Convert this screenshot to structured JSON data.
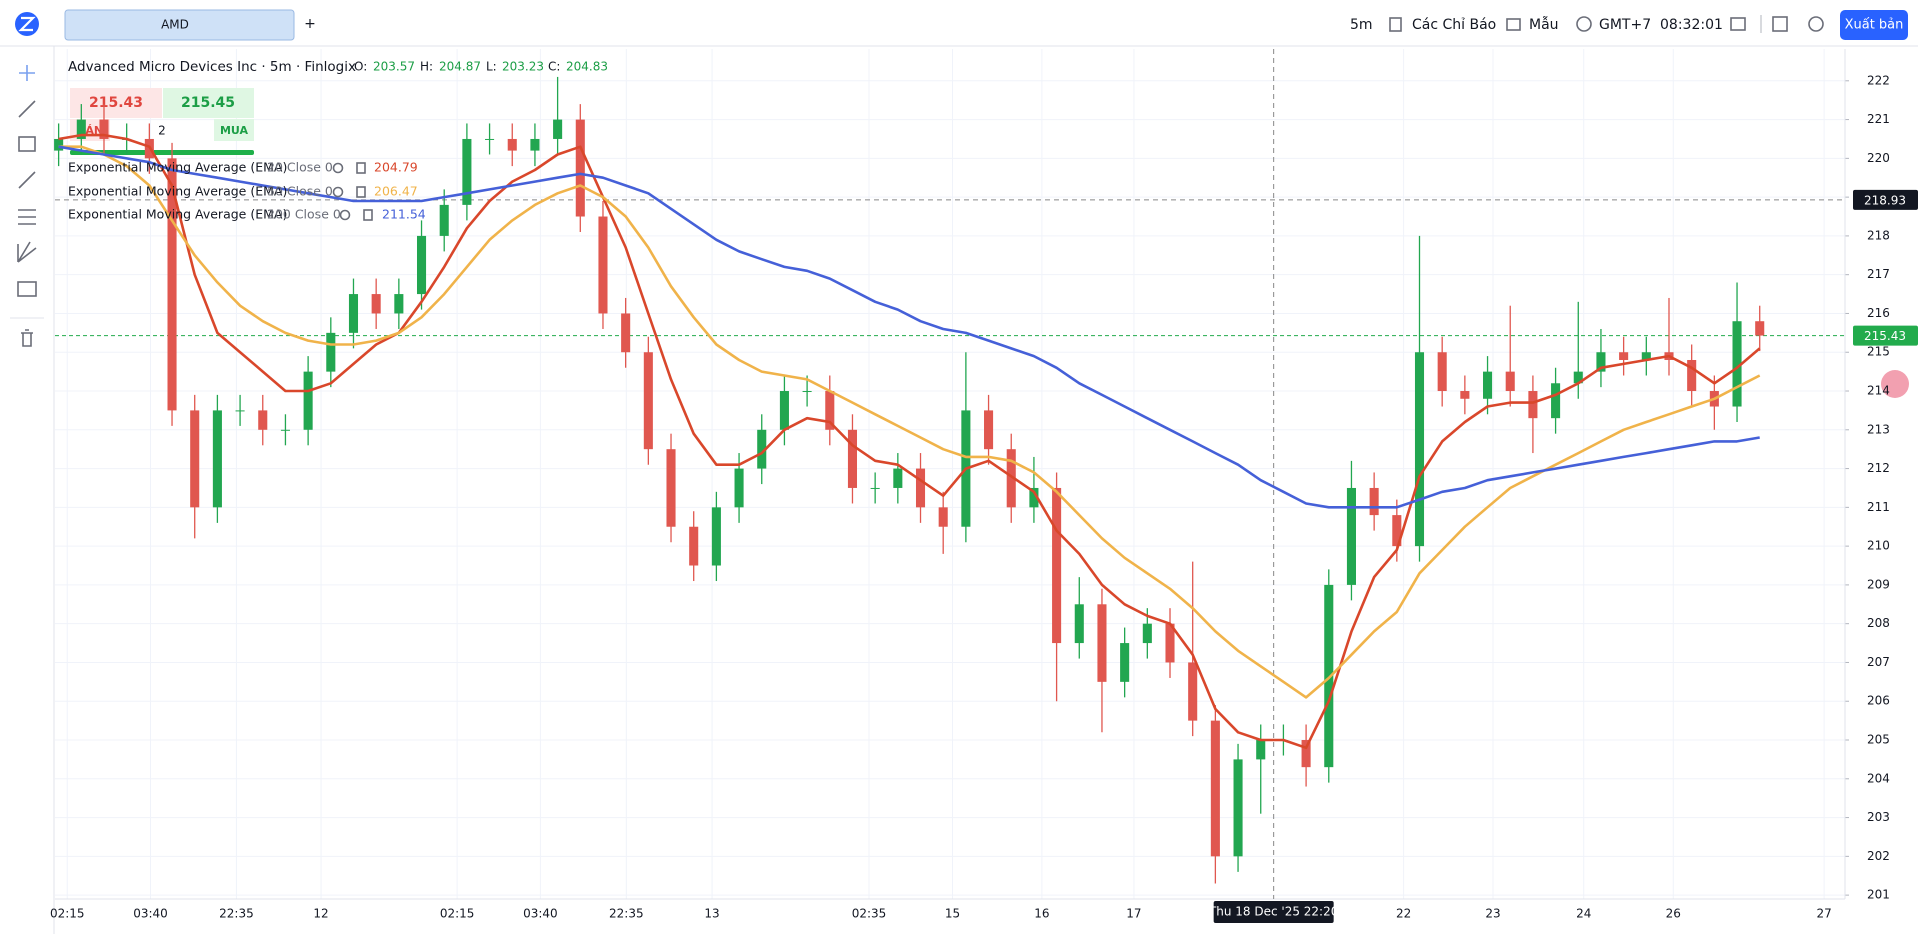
{
  "toolbar": {
    "tab": "AMD",
    "add": "+",
    "interval": "5m",
    "indicators": "Các Chỉ Báo",
    "templates": "Mẫu",
    "timezone": "GMT+7",
    "clock": "08:32:01",
    "publish": "Xuất bản"
  },
  "trade": {
    "sell_price": 215.43,
    "buy_price": 215.45,
    "sell": "BÁN",
    "quantity": 2,
    "buy": "MUA"
  },
  "chart_data": {
    "type": "candlestick",
    "title": "Advanced Micro Devices Inc · 5m · Finlogix",
    "ohlc_legend": [
      {
        "label": "O:",
        "value": 203.57
      },
      {
        "label": "H:",
        "value": 204.87
      },
      {
        "label": "L:",
        "value": 203.23
      },
      {
        "label": "C:",
        "value": 204.83
      }
    ],
    "up_color": "#22a650",
    "down_color": "#e0574f",
    "xlim": [
      -0.16,
      78.76
    ],
    "xticks": [
      {
        "value": 0.38,
        "label": "02:15"
      },
      {
        "value": 4.05,
        "label": "03:40"
      },
      {
        "value": 7.84,
        "label": "22:35"
      },
      {
        "value": 11.57,
        "label": "12"
      },
      {
        "value": 17.57,
        "label": "02:15"
      },
      {
        "value": 21.24,
        "label": "03:40"
      },
      {
        "value": 25.03,
        "label": "22:35"
      },
      {
        "value": 28.81,
        "label": "13"
      },
      {
        "value": 35.73,
        "label": "02:35"
      },
      {
        "value": 39.41,
        "label": "15"
      },
      {
        "value": 43.35,
        "label": "16"
      },
      {
        "value": 47.41,
        "label": "17"
      },
      {
        "value": 59.3,
        "label": "22"
      },
      {
        "value": 63.24,
        "label": "23"
      },
      {
        "value": 67.24,
        "label": "24"
      },
      {
        "value": 71.19,
        "label": "26"
      },
      {
        "value": 77.84,
        "label": "27"
      }
    ],
    "ylim": [
      200.9,
      222.82
    ],
    "yticks": [
      201,
      202,
      203,
      204,
      205,
      206,
      207,
      208,
      209,
      210,
      211,
      212,
      213,
      214,
      215,
      216,
      217,
      218,
      219,
      220,
      221,
      222
    ],
    "grid": true,
    "x": [
      0,
      1,
      2,
      3,
      4,
      5,
      6,
      7,
      8,
      9,
      10,
      11,
      12,
      13,
      14,
      15,
      16,
      17,
      18,
      19,
      20,
      21,
      22,
      23,
      24,
      25,
      26,
      27,
      28,
      29,
      30,
      31,
      32,
      33,
      34,
      35,
      36,
      37,
      38,
      39,
      40,
      41,
      42,
      43,
      44,
      45,
      46,
      47,
      48,
      49,
      50,
      51,
      52,
      53,
      54,
      55,
      56,
      57,
      58,
      59,
      60,
      61,
      62,
      63,
      64,
      65,
      66,
      67,
      68,
      69,
      70,
      71,
      72,
      73,
      74,
      75
    ],
    "candles": {
      "open": [
        220.2,
        220.5,
        221,
        220.5,
        220.5,
        220,
        213.5,
        211,
        213.5,
        213.5,
        213,
        213,
        214.5,
        215.5,
        216.5,
        216,
        216.5,
        218,
        218.8,
        220.5,
        220.5,
        220.2,
        220.5,
        221,
        218.5,
        216,
        215,
        212.5,
        210.5,
        209.5,
        211,
        212,
        213,
        214,
        214,
        213,
        211.5,
        211.5,
        212,
        211,
        210.5,
        213.5,
        212.5,
        211,
        211.5,
        207.5,
        208.5,
        206.5,
        207.5,
        208,
        207,
        205.5,
        202,
        204.5,
        205,
        205,
        204.3,
        209,
        211.5,
        210.8,
        210,
        215,
        214,
        213.8,
        214.5,
        214,
        213.3,
        214.2,
        214.5,
        215,
        214.8,
        215,
        214.8,
        214,
        213.6,
        215.8
      ],
      "high": [
        220.9,
        221.4,
        221.4,
        220.9,
        220.9,
        220.4,
        213.9,
        213.9,
        213.9,
        213.9,
        213.4,
        214.9,
        215.9,
        216.9,
        216.9,
        216.9,
        218.4,
        219.2,
        220.9,
        220.9,
        220.9,
        220.9,
        222.1,
        221.4,
        218.9,
        216.4,
        215.4,
        212.9,
        210.9,
        211.4,
        212.4,
        213.4,
        214.4,
        214.4,
        214.4,
        213.4,
        211.9,
        212.4,
        212.4,
        211.4,
        215,
        213.9,
        212.9,
        212.3,
        211.9,
        209.2,
        208.9,
        207.9,
        208.4,
        208.4,
        209.6,
        205.9,
        204.9,
        205.4,
        205.4,
        205.4,
        209.4,
        212.2,
        211.9,
        211.2,
        218,
        215.4,
        214.4,
        214.9,
        216.2,
        214.4,
        214.6,
        216.3,
        215.6,
        215.4,
        215.4,
        216.4,
        215.2,
        214.4,
        216.8,
        216.2
      ],
      "low": [
        219.8,
        220.1,
        220.1,
        220.1,
        219.6,
        213.1,
        210.2,
        210.6,
        213.1,
        212.6,
        212.6,
        212.6,
        214.1,
        215.1,
        215.6,
        215.6,
        216.1,
        217.6,
        218.4,
        220.1,
        219.8,
        219.8,
        220.1,
        218.1,
        215.6,
        214.6,
        212.1,
        210.1,
        209.1,
        209.1,
        210.6,
        211.6,
        212.6,
        213.6,
        212.6,
        211.1,
        211.1,
        211.1,
        210.6,
        209.8,
        210.1,
        212.1,
        210.6,
        210.6,
        206,
        207.1,
        205.2,
        206.1,
        207.1,
        206.6,
        205.1,
        201.3,
        201.6,
        203.1,
        204.6,
        203.8,
        203.9,
        208.6,
        210.4,
        209.6,
        209.6,
        213.6,
        213.4,
        213.4,
        213.6,
        212.4,
        212.9,
        213.8,
        214.1,
        214.4,
        214.4,
        214.4,
        213.6,
        213,
        213.2,
        215.03
      ],
      "close": [
        220.5,
        221,
        220.5,
        220.5,
        220,
        213.5,
        211,
        213.5,
        213.5,
        213,
        213,
        214.5,
        215.5,
        216.5,
        216,
        216.5,
        218,
        218.8,
        220.5,
        220.5,
        220.2,
        220.5,
        221,
        218.5,
        216,
        215,
        212.5,
        210.5,
        209.5,
        211,
        212,
        213,
        214,
        214,
        213,
        211.5,
        211.5,
        212,
        211,
        210.5,
        213.5,
        212.5,
        211,
        211.5,
        207.5,
        208.5,
        206.5,
        207.5,
        208,
        207,
        205.5,
        202,
        204.5,
        205,
        205,
        204.3,
        209,
        211.5,
        210.8,
        210,
        215,
        214,
        213.8,
        214.5,
        214,
        213.3,
        214.2,
        214.5,
        215,
        214.8,
        215,
        214.8,
        214,
        213.6,
        215.8,
        215.43
      ]
    },
    "series": [
      {
        "name": "Exponential Moving Average (EMA)",
        "params": "20 Close 0",
        "last": 204.79,
        "color": "#d9472b",
        "values": [
          220.5,
          220.6,
          220.6,
          220.5,
          220.3,
          219.3,
          217,
          215.5,
          215,
          214.5,
          214,
          214,
          214.2,
          214.7,
          215.2,
          215.5,
          216.3,
          217.2,
          218.2,
          218.9,
          219.4,
          219.7,
          220.1,
          220.3,
          219,
          217.7,
          216,
          214.3,
          212.9,
          212.1,
          212.1,
          212.4,
          213,
          213.3,
          213.2,
          212.6,
          212.2,
          212.1,
          211.7,
          211.3,
          212,
          212.2,
          211.8,
          211.4,
          210.4,
          209.8,
          209,
          208.5,
          208.2,
          208,
          207.2,
          205.8,
          205.2,
          205,
          205,
          204.8,
          206,
          207.8,
          209.2,
          209.9,
          211.8,
          212.7,
          213.2,
          213.6,
          213.7,
          213.7,
          213.9,
          214.2,
          214.6,
          214.7,
          214.8,
          214.9,
          214.6,
          214.2,
          214.6,
          215.1
        ]
      },
      {
        "name": "Exponential Moving Average (EMA)",
        "params": "50 Close 0",
        "last": 206.47,
        "color": "#f0b34a",
        "values": [
          220.3,
          220.3,
          220.1,
          219.8,
          219.3,
          218.4,
          217.5,
          216.8,
          216.2,
          215.8,
          215.5,
          215.3,
          215.2,
          215.2,
          215.3,
          215.5,
          215.9,
          216.5,
          217.2,
          217.9,
          218.4,
          218.8,
          219.1,
          219.3,
          219,
          218.5,
          217.7,
          216.7,
          215.9,
          215.2,
          214.8,
          214.5,
          214.4,
          214.3,
          214,
          213.7,
          213.4,
          213.1,
          212.8,
          212.5,
          212.3,
          212.3,
          212.2,
          211.9,
          211.4,
          210.8,
          210.2,
          209.7,
          209.3,
          208.9,
          208.4,
          207.8,
          207.3,
          206.9,
          206.5,
          206.1,
          206.6,
          207.2,
          207.8,
          208.3,
          209.3,
          209.9,
          210.5,
          211,
          211.5,
          211.8,
          212.1,
          212.4,
          212.7,
          213,
          213.2,
          213.4,
          213.6,
          213.8,
          214.1,
          214.4
        ]
      },
      {
        "name": "Exponential Moving Average (EMA)",
        "params": "200 Close 0",
        "last": 211.54,
        "color": "#4560d8",
        "values": [
          220.3,
          220.2,
          220.1,
          220,
          219.9,
          219.7,
          219.6,
          219.5,
          219.4,
          219.3,
          219.2,
          219.1,
          219,
          218.9,
          218.9,
          218.9,
          218.9,
          219,
          219.1,
          219.2,
          219.3,
          219.4,
          219.5,
          219.6,
          219.5,
          219.3,
          219.1,
          218.7,
          218.3,
          217.9,
          217.6,
          217.4,
          217.2,
          217.1,
          216.9,
          216.6,
          216.3,
          216.1,
          215.8,
          215.6,
          215.5,
          215.3,
          215.1,
          214.9,
          214.6,
          214.2,
          213.9,
          213.6,
          213.3,
          213,
          212.7,
          212.4,
          212.1,
          211.7,
          211.4,
          211.1,
          211,
          211,
          211,
          211,
          211.2,
          211.4,
          211.5,
          211.7,
          211.8,
          211.9,
          212,
          212.1,
          212.2,
          212.3,
          212.4,
          212.5,
          212.6,
          212.7,
          212.7,
          212.8
        ]
      }
    ],
    "crosshair": {
      "x": 53.57,
      "x_label": "Thu 18 Dec '25 22:20",
      "y": 218.93
    },
    "last_price": {
      "value": 215.43,
      "color": "#22ab4c"
    }
  }
}
